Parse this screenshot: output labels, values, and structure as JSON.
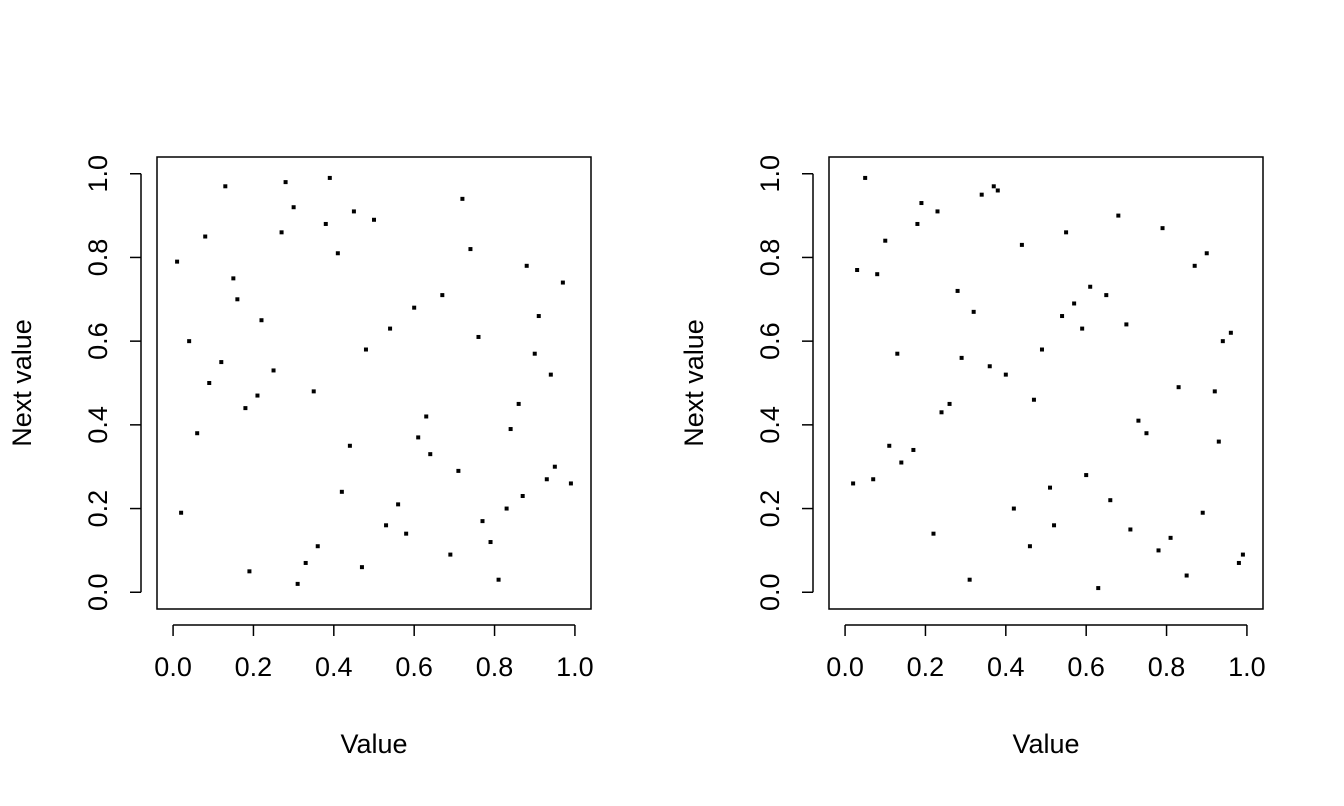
{
  "chart_data": [
    {
      "type": "scatter",
      "xlabel": "Value",
      "ylabel": "Next value",
      "color": "#000000",
      "xlim": [
        -0.04,
        1.04
      ],
      "ylim": [
        -0.04,
        1.04
      ],
      "xticks": [
        {
          "value": 0,
          "label": "0.0"
        },
        0.2,
        0.4,
        0.6,
        0.8,
        {
          "value": 1,
          "label": "1.0"
        }
      ],
      "yticks": [
        {
          "value": 0,
          "label": "0.0"
        },
        0.2,
        0.4,
        0.6,
        0.8,
        {
          "value": 1,
          "label": "1.0"
        }
      ],
      "x": [
        0.12,
        0.87,
        0.45,
        0.33,
        0.91,
        0.06,
        0.58,
        0.74,
        0.21,
        0.39,
        0.95,
        0.67,
        0.02,
        0.48,
        0.81,
        0.27,
        0.63,
        0.15,
        0.99,
        0.54,
        0.36,
        0.72,
        0.09,
        0.44,
        0.88,
        0.31,
        0.6,
        0.18,
        0.77,
        0.5,
        0.04,
        0.93,
        0.41,
        0.69,
        0.25,
        0.84,
        0.13,
        0.56,
        0.97,
        0.35,
        0.79,
        0.22,
        0.64,
        0.08,
        0.47,
        0.9,
        0.3,
        0.71,
        0.16,
        0.53,
        0.86,
        0.01,
        0.42,
        0.76,
        0.28,
        0.61,
        0.19,
        0.94,
        0.38,
        0.83
      ],
      "values": [
        0.55,
        0.23,
        0.91,
        0.07,
        0.66,
        0.38,
        0.14,
        0.82,
        0.47,
        0.99,
        0.3,
        0.71,
        0.19,
        0.58,
        0.03,
        0.86,
        0.42,
        0.75,
        0.26,
        0.63,
        0.11,
        0.94,
        0.5,
        0.35,
        0.78,
        0.02,
        0.68,
        0.44,
        0.17,
        0.89,
        0.6,
        0.27,
        0.81,
        0.09,
        0.53,
        0.39,
        0.97,
        0.21,
        0.74,
        0.48,
        0.12,
        0.65,
        0.33,
        0.85,
        0.06,
        0.57,
        0.92,
        0.29,
        0.7,
        0.16,
        0.45,
        0.79,
        0.24,
        0.61,
        0.98,
        0.37,
        0.05,
        0.52,
        0.88,
        0.2
      ]
    },
    {
      "type": "scatter",
      "xlabel": "Value",
      "ylabel": "Next value",
      "color": "#000000",
      "xlim": [
        -0.04,
        1.04
      ],
      "ylim": [
        -0.04,
        1.04
      ],
      "xticks": [
        {
          "value": 0,
          "label": "0.0"
        },
        0.2,
        0.4,
        0.6,
        0.8,
        {
          "value": 1,
          "label": "1.0"
        }
      ],
      "yticks": [
        {
          "value": 0,
          "label": "0.0"
        },
        0.2,
        0.4,
        0.6,
        0.8,
        {
          "value": 1,
          "label": "1.0"
        }
      ],
      "x": [
        0.73,
        0.18,
        0.52,
        0.96,
        0.34,
        0.07,
        0.61,
        0.85,
        0.29,
        0.44,
        0.11,
        0.78,
        0.57,
        0.92,
        0.23,
        0.66,
        0.03,
        0.49,
        0.81,
        0.37,
        0.14,
        0.7,
        0.98,
        0.26,
        0.55,
        0.89,
        0.4,
        0.08,
        0.63,
        0.32,
        0.75,
        0.19,
        0.51,
        0.94,
        0.1,
        0.46,
        0.83,
        0.28,
        0.6,
        0.05,
        0.71,
        0.36,
        0.9,
        0.17,
        0.54,
        0.99,
        0.24,
        0.68,
        0.42,
        0.13,
        0.87,
        0.31,
        0.59,
        0.02,
        0.79,
        0.47,
        0.22,
        0.65,
        0.93,
        0.38
      ],
      "values": [
        0.41,
        0.88,
        0.16,
        0.62,
        0.95,
        0.27,
        0.73,
        0.04,
        0.56,
        0.83,
        0.35,
        0.1,
        0.69,
        0.48,
        0.91,
        0.22,
        0.77,
        0.58,
        0.13,
        0.97,
        0.31,
        0.64,
        0.07,
        0.45,
        0.86,
        0.19,
        0.52,
        0.76,
        0.01,
        0.67,
        0.38,
        0.93,
        0.25,
        0.6,
        0.84,
        0.11,
        0.49,
        0.72,
        0.28,
        0.99,
        0.15,
        0.54,
        0.81,
        0.34,
        0.66,
        0.09,
        0.43,
        0.9,
        0.2,
        0.57,
        0.78,
        0.03,
        0.63,
        0.26,
        0.87,
        0.46,
        0.14,
        0.71,
        0.36,
        0.96
      ]
    }
  ]
}
